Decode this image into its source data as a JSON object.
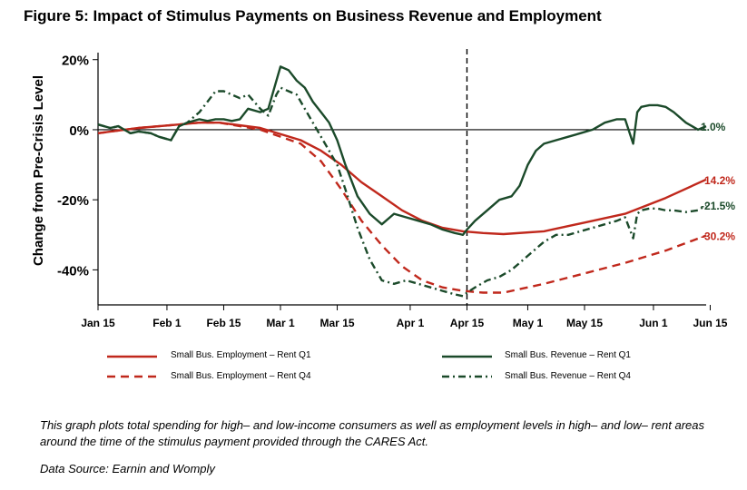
{
  "figure_title": "Figure 5: Impact of Stimulus Payments on Business Revenue and Employment",
  "caption": "This graph plots total spending for high– and low-income consumers as well as employment levels in high– and low– rent areas around the time of the stimulus payment provided through the CARES Act.",
  "source": "Data Source: Earnin and Womply",
  "colors": {
    "red": "#c0281c",
    "green": "#1b4a2a",
    "axis": "#000000"
  },
  "chart_data": {
    "type": "line",
    "title": "Figure 5: Impact of Stimulus Payments on Business Revenue and Employment",
    "xlabel": "",
    "ylabel": "Change from Pre-Crisis Level",
    "x_unit": "days since Jan 15",
    "xlim": [
      0,
      150
    ],
    "ylim": [
      -50,
      22
    ],
    "yticks": [
      20,
      0,
      -20,
      -40
    ],
    "ytick_labels": [
      "20%",
      "0%",
      "-20%",
      "-40%"
    ],
    "xticks": [
      0,
      17,
      31,
      45,
      59,
      77,
      91,
      106,
      120,
      137,
      151
    ],
    "xtick_labels": [
      "Jan 15",
      "Feb 1",
      "Feb 15",
      "Mar 1",
      "Mar 15",
      "Apr 1",
      "Apr 15",
      "May 1",
      "May 15",
      "Jun 1",
      "Jun 15"
    ],
    "vline_x": 91,
    "grid": false,
    "legend_position": "bottom",
    "series": [
      {
        "name": "Small Bus. Employment – Rent Q1",
        "color": "#c0281c",
        "dash": "solid",
        "end_label": "-14.2%",
        "x": [
          0,
          10,
          20,
          25,
          30,
          40,
          50,
          55,
          60,
          65,
          70,
          75,
          80,
          85,
          90,
          95,
          100,
          110,
          120,
          130,
          140,
          150
        ],
        "y": [
          -1,
          0.5,
          1.5,
          2,
          2,
          0.5,
          -3,
          -6,
          -10,
          -15,
          -19,
          -23,
          -26,
          -28,
          -29,
          -29.5,
          -29.8,
          -29,
          -26.5,
          -24,
          -19.5,
          -14.2
        ]
      },
      {
        "name": "Small Bus. Employment – Rent Q4",
        "color": "#c0281c",
        "dash": "dashed",
        "end_label": "-30.2%",
        "x": [
          0,
          10,
          20,
          25,
          30,
          40,
          50,
          55,
          60,
          65,
          70,
          75,
          80,
          85,
          90,
          95,
          100,
          110,
          120,
          130,
          140,
          150
        ],
        "y": [
          -1,
          0.5,
          1.5,
          2,
          2,
          0,
          -4,
          -9,
          -17,
          -26,
          -33,
          -39,
          -43,
          -45,
          -46,
          -46.5,
          -46.5,
          -44,
          -41,
          -38,
          -34.5,
          -30.2
        ]
      },
      {
        "name": "Small Bus. Revenue – Rent Q1",
        "color": "#1b4a2a",
        "dash": "solid",
        "end_label": "1.0%",
        "x": [
          0,
          3,
          5,
          8,
          10,
          13,
          15,
          18,
          20,
          22,
          25,
          27,
          29,
          31,
          33,
          35,
          37,
          40,
          42,
          44,
          45,
          47,
          49,
          51,
          53,
          55,
          57,
          59,
          61,
          64,
          67,
          70,
          73,
          76,
          79,
          82,
          85,
          88,
          90,
          91,
          93,
          96,
          99,
          102,
          104,
          106,
          108,
          110,
          113,
          116,
          119,
          122,
          125,
          128,
          130,
          132,
          133,
          134,
          136,
          138,
          140,
          142,
          145,
          148,
          150
        ],
        "y": [
          1.5,
          0.5,
          1,
          -1,
          -0.5,
          -1,
          -2,
          -3,
          1,
          2,
          3,
          2.5,
          3,
          3,
          2.5,
          3,
          6,
          5,
          6,
          14,
          18,
          17,
          14,
          12,
          8,
          5,
          2,
          -3,
          -10,
          -19,
          -24,
          -27,
          -24,
          -25,
          -26,
          -27,
          -28.5,
          -29.5,
          -30,
          -28.5,
          -26,
          -23,
          -20,
          -19,
          -16,
          -10,
          -6,
          -4,
          -3,
          -2,
          -1,
          0,
          2,
          3,
          3,
          -4,
          5,
          6.5,
          7,
          7,
          6.5,
          5,
          2,
          0,
          1
        ]
      },
      {
        "name": "Small Bus. Revenue – Rent Q4",
        "color": "#1b4a2a",
        "dash": "dashdot",
        "end_label": "-21.5%",
        "x": [
          0,
          3,
          5,
          8,
          10,
          13,
          15,
          18,
          20,
          22,
          25,
          27,
          29,
          31,
          33,
          35,
          37,
          40,
          42,
          44,
          45,
          47,
          49,
          51,
          53,
          55,
          57,
          59,
          61,
          64,
          67,
          70,
          73,
          76,
          79,
          82,
          85,
          88,
          90,
          91,
          93,
          96,
          99,
          102,
          104,
          106,
          108,
          110,
          113,
          116,
          119,
          122,
          125,
          128,
          130,
          132,
          133,
          134,
          136,
          138,
          140,
          142,
          145,
          148,
          150
        ],
        "y": [
          1.5,
          0.5,
          1,
          -1,
          -0.5,
          -1,
          -2,
          -3,
          1,
          2,
          5,
          8,
          11,
          11,
          10,
          9,
          10,
          6,
          4,
          10,
          12,
          11,
          10,
          6,
          2,
          -2,
          -6,
          -10,
          -17,
          -28,
          -37,
          -43,
          -44,
          -43,
          -44,
          -45,
          -46,
          -47,
          -47.5,
          -46.5,
          -45,
          -43,
          -42,
          -40,
          -38,
          -36,
          -34,
          -32,
          -30,
          -30,
          -29,
          -28,
          -27,
          -26,
          -25,
          -31,
          -24,
          -23,
          -22.5,
          -22.5,
          -23,
          -23,
          -23.5,
          -23,
          -21.5
        ]
      }
    ]
  }
}
